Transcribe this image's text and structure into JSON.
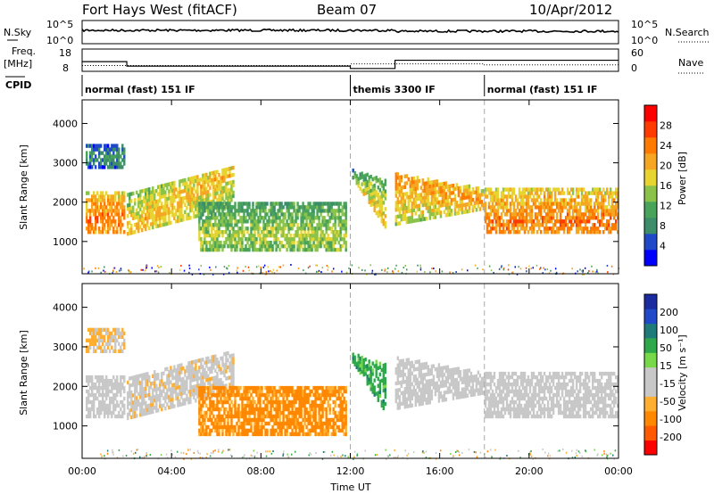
{
  "header": {
    "title": "Fort Hays West (fitACF)",
    "beam": "Beam 07",
    "date": "10/Apr/2012"
  },
  "colors": {
    "frame": "#000000",
    "dash": "#aaaaaa",
    "power_scale": [
      "#0000ff",
      "#1f49c8",
      "#3d8d6a",
      "#4aa35a",
      "#8bc34a",
      "#e8d430",
      "#f5a623",
      "#ff7a00",
      "#ff3b00",
      "#ff0000"
    ],
    "velocity_scale": [
      "#ff0000",
      "#ff5a00",
      "#ff8800",
      "#ffae30",
      "#c8c8c8",
      "#c8c8c8",
      "#77d94a",
      "#2ea84a",
      "#1f7a7a",
      "#1f49c8",
      "#1a2ca0"
    ]
  },
  "top_panels": {
    "nsky_label": "N.Sky",
    "nsky_ticks": [
      "10^5",
      "10^0"
    ],
    "nsearch_label": "N.Search",
    "nsearch_ticks": [
      "10^5",
      "10^0"
    ],
    "freq_label": "Freq.",
    "freq_unit": "[MHz]",
    "freq_ticks": [
      "18",
      "8"
    ],
    "nave_label": "Nave",
    "nave_ticks": [
      "60",
      "0"
    ],
    "cpid_label": "CPID",
    "cpid_segments": [
      {
        "start": 0,
        "end": 12,
        "label": "normal (fast) 151 IF"
      },
      {
        "start": 12,
        "end": 18,
        "label": "themis 3300 IF"
      },
      {
        "start": 18,
        "end": 24,
        "label": "normal (fast) 151 IF"
      }
    ],
    "freq_steps": [
      {
        "t0": 0,
        "t1": 2,
        "v": 12.5
      },
      {
        "t0": 2,
        "t1": 12,
        "v": 10.2
      },
      {
        "t0": 12,
        "t1": 14,
        "v": 9.0
      },
      {
        "t0": 14,
        "t1": 24,
        "v": 13.2
      }
    ],
    "nave_steps": [
      {
        "t0": 0,
        "t1": 2,
        "v": 15
      },
      {
        "t0": 2,
        "t1": 12,
        "v": 15
      },
      {
        "t0": 12,
        "t1": 14,
        "v": 20
      },
      {
        "t0": 14,
        "t1": 18,
        "v": 20
      },
      {
        "t0": 18,
        "t1": 24,
        "v": 17
      }
    ]
  },
  "power_panel": {
    "ylabel": "Slant Range [km]",
    "yticks": [
      "1000",
      "2000",
      "3000",
      "4000"
    ],
    "colorbar_label": "Power [dB]",
    "colorbar_ticks": [
      "4",
      "8",
      "12",
      "16",
      "20",
      "24",
      "28"
    ]
  },
  "velocity_panel": {
    "ylabel": "Slant Range [km]",
    "yticks": [
      "1000",
      "2000",
      "3000",
      "4000"
    ],
    "colorbar_label": "Velocity [m s⁻¹]",
    "colorbar_ticks": [
      "200",
      "100",
      "50",
      "15",
      "-15",
      "-50",
      "-100",
      "-200"
    ]
  },
  "xaxis": {
    "label": "Time UT",
    "ticks": [
      "00:00",
      "04:00",
      "08:00",
      "12:00",
      "16:00",
      "20:00",
      "00:00"
    ]
  },
  "chart_data": {
    "type": "heatmap",
    "title": "Fort Hays West (fitACF)",
    "xlabel": "Time UT",
    "ylabel": "Slant Range [km]",
    "xlim": [
      0,
      24
    ],
    "ylim": [
      180,
      4600
    ],
    "dashed_markers_hours": [
      12,
      18
    ],
    "bands": [
      {
        "name": "early",
        "t0": 0.2,
        "t1": 1.9,
        "r0": 1200,
        "r1": 2200,
        "ridge": 1480,
        "power": 22,
        "velocity": -10
      },
      {
        "name": "early-high",
        "t0": 0.2,
        "t1": 1.9,
        "r0": 2850,
        "r1": 3450,
        "ridge": 3100,
        "power": 8,
        "velocity": -30
      },
      {
        "name": "rising",
        "t0": 2.0,
        "t1": 6.8,
        "r0": 1150,
        "r1": 2900,
        "ridge": 1700,
        "power": 18,
        "velocity": -20
      },
      {
        "name": "morning-diffuse",
        "t0": 5.2,
        "t1": 11.8,
        "r0": 750,
        "r1": 1950,
        "ridge": 1100,
        "power": 14,
        "velocity": -60
      },
      {
        "name": "post-noon",
        "t0": 12.1,
        "t1": 13.6,
        "r0": 1200,
        "r1": 2600,
        "ridge": 1900,
        "power": 18,
        "velocity": 40
      },
      {
        "name": "afternoon",
        "t0": 14.0,
        "t1": 18.0,
        "r0": 1400,
        "r1": 2700,
        "ridge": 2000,
        "power": 20,
        "velocity": -10
      },
      {
        "name": "evening",
        "t0": 18.0,
        "t1": 24.0,
        "r0": 1200,
        "r1": 2300,
        "ridge": 1450,
        "power": 22,
        "velocity": -5
      }
    ]
  }
}
